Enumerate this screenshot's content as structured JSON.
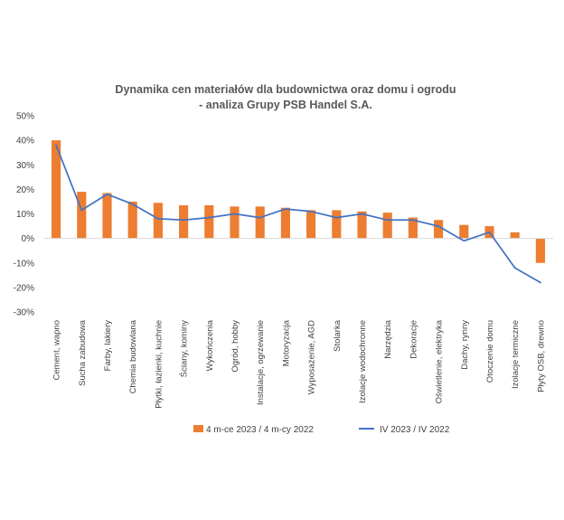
{
  "chart_data": {
    "type": "bar",
    "title_lines": [
      "Dynamika cen materiałów dla budownictwa oraz domu i ogrodu",
      "- analiza Grupy PSB Handel S.A."
    ],
    "categories": [
      "Cement, wapno",
      "Sucha zabudowa",
      "Farby, lakiery",
      "Chemia budowlana",
      "Płytki, łazienki, kuchnie",
      "Ściany, kominy",
      "Wykończenia",
      "Ogród, hobby",
      "Instalacje, ogrzewanie",
      "Motoryzacja",
      "Wyposażenie, AGD",
      "Stolarka",
      "Izolacje wodochronne",
      "Narzędzia",
      "Dekoracje",
      "Oświetlenie, elektryka",
      "Dachy, rynny",
      "Otoczenie domu",
      "Izolacje termiczne",
      "Płyty OSB, drewno"
    ],
    "series": [
      {
        "name": "4 m-ce 2023 / 4 m-cy 2022",
        "kind": "bar",
        "color": "#ED7D31",
        "values": [
          40,
          19,
          18.5,
          15,
          14.5,
          13.5,
          13.5,
          13,
          13,
          12.5,
          11.5,
          11.5,
          11,
          10.5,
          8.5,
          7.5,
          5.5,
          5,
          2.5,
          -10
        ]
      },
      {
        "name": "IV 2023 / IV 2022",
        "kind": "line",
        "color": "#4472C4",
        "values": [
          38,
          11.5,
          18,
          14,
          8,
          7.5,
          8.5,
          10,
          8.5,
          12,
          11,
          8.5,
          10,
          7.5,
          7.5,
          5,
          -1,
          2.5,
          -12,
          -18
        ]
      }
    ],
    "y_ticks": [
      "50%",
      "40%",
      "30%",
      "20%",
      "10%",
      "0%",
      "-10%",
      "-20%",
      "-30%"
    ],
    "y_tick_values": [
      50,
      40,
      30,
      20,
      10,
      0,
      -10,
      -20,
      -30
    ],
    "ylim": [
      -30,
      50
    ],
    "grid": false,
    "legend_position": "bottom"
  }
}
